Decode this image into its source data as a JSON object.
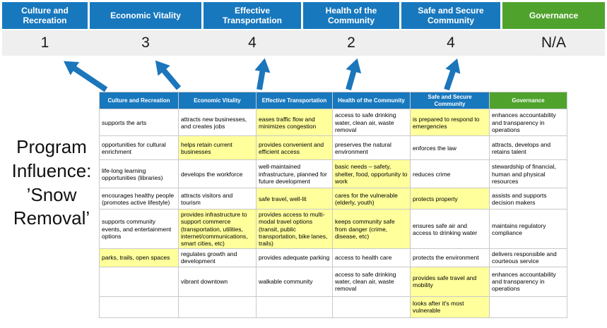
{
  "title": {
    "lines": [
      "Program",
      "Influence:",
      "’Snow",
      "Removal’"
    ]
  },
  "colors": {
    "category_blue": "#1878BE",
    "category_green": "#4FA32D",
    "highlight_yellow": "#FFFF9C",
    "score_band_gray": "#EFEFEF",
    "arrow_blue": "#1B76BC"
  },
  "scoreboard": {
    "categories": [
      {
        "label": "Culture and Recreation",
        "score": "1",
        "theme": "blue"
      },
      {
        "label": "Economic Vitality",
        "score": "3",
        "theme": "blue"
      },
      {
        "label": "Effective Transportation",
        "score": "4",
        "theme": "blue"
      },
      {
        "label": "Health of the Community",
        "score": "2",
        "theme": "blue"
      },
      {
        "label": "Safe and Secure Community",
        "score": "4",
        "theme": "blue"
      },
      {
        "label": "Governance",
        "score": "N/A",
        "theme": "green"
      }
    ]
  },
  "matrix": {
    "headers": [
      {
        "label": "Culture and Recreation",
        "theme": "blue"
      },
      {
        "label": "Economic Vitality",
        "theme": "blue"
      },
      {
        "label": "Effective Transportation",
        "theme": "blue"
      },
      {
        "label": "Health of the Community",
        "theme": "blue"
      },
      {
        "label": "Safe and Secure Community",
        "theme": "blue"
      },
      {
        "label": "Governance",
        "theme": "green"
      }
    ],
    "rows": [
      [
        {
          "text": "supports the arts",
          "highlight": false
        },
        {
          "text": "attracts new businesses, and creates jobs",
          "highlight": false
        },
        {
          "text": "eases traffic flow and minimizes congestion",
          "highlight": true
        },
        {
          "text": "access to safe drinking water, clean air, waste removal",
          "highlight": false
        },
        {
          "text": "is prepared to respond to emergencies",
          "highlight": true
        },
        {
          "text": "enhances accountability and transparency in operations",
          "highlight": false
        }
      ],
      [
        {
          "text": "opportunities for cultural enrichment",
          "highlight": false
        },
        {
          "text": "helps retain current businesses",
          "highlight": true
        },
        {
          "text": "provides convenient and efficient access",
          "highlight": true
        },
        {
          "text": "preserves the natural environment",
          "highlight": false
        },
        {
          "text": "enforces the law",
          "highlight": false
        },
        {
          "text": "attracts, develops and retains talent",
          "highlight": false
        }
      ],
      [
        {
          "text": "life-long learning opportunities (libraries)",
          "highlight": false
        },
        {
          "text": "develops the workforce",
          "highlight": false
        },
        {
          "text": "well-maintained infrastructure, planned for future development",
          "highlight": false
        },
        {
          "text": "basic needs – safety, shelter, food, opportunity to work",
          "highlight": true
        },
        {
          "text": "reduces crime",
          "highlight": false
        },
        {
          "text": "stewardship of financial, human and physical resources",
          "highlight": false
        }
      ],
      [
        {
          "text": "encourages healthy people (promotes active lifestyle)",
          "highlight": false
        },
        {
          "text": "attracts visitors and tourism",
          "highlight": false
        },
        {
          "text": "safe travel, well-lit",
          "highlight": true
        },
        {
          "text": "cares for the vulnerable (elderly, youth)",
          "highlight": true
        },
        {
          "text": "protects property",
          "highlight": true
        },
        {
          "text": "assists and supports decision makers",
          "highlight": false
        }
      ],
      [
        {
          "text": "supports community events, and entertainment options",
          "highlight": false
        },
        {
          "text": "provides infrastructure to support commerce (transportation, utilities, internet/communications, smart cities, etc)",
          "highlight": true
        },
        {
          "text": "provides access to multi-modal travel options (transit, public transportation, bike lanes, trails)",
          "highlight": true
        },
        {
          "text": "keeps community safe from danger (crime, disease, etc)",
          "highlight": true
        },
        {
          "text": "ensures safe air and access to drinking water",
          "highlight": false
        },
        {
          "text": "maintains regulatory compliance",
          "highlight": false
        }
      ],
      [
        {
          "text": "parks, trails, open spaces",
          "highlight": true
        },
        {
          "text": "regulates growth and development",
          "highlight": false
        },
        {
          "text": "provides adequate parking",
          "highlight": false
        },
        {
          "text": "access to health care",
          "highlight": false
        },
        {
          "text": "protects the environment",
          "highlight": false
        },
        {
          "text": "delivers responsible and courteous service",
          "highlight": false
        }
      ],
      [
        {
          "text": "",
          "highlight": false
        },
        {
          "text": "vibrant downtown",
          "highlight": false
        },
        {
          "text": "walkable community",
          "highlight": false
        },
        {
          "text": "access to safe drinking water, clean air, waste removal",
          "highlight": false
        },
        {
          "text": "provides safe travel and mobility",
          "highlight": true
        },
        {
          "text": "enhances accountability and transparency in operations",
          "highlight": false
        }
      ],
      [
        {
          "text": "",
          "highlight": false
        },
        {
          "text": "",
          "highlight": false
        },
        {
          "text": "",
          "highlight": false
        },
        {
          "text": "",
          "highlight": false
        },
        {
          "text": "looks after it's most vulnerable",
          "highlight": true
        },
        {
          "text": "",
          "highlight": false
        }
      ]
    ]
  }
}
